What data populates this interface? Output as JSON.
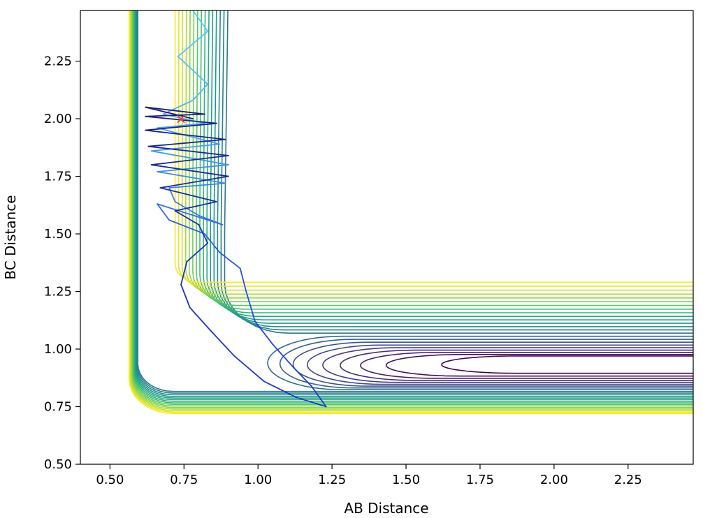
{
  "chart_data": {
    "type": "contour",
    "title": "",
    "xlabel": "AB Distance",
    "ylabel": "BC Distance",
    "xlim": [
      0.4,
      2.47
    ],
    "ylim": [
      0.5,
      2.47
    ],
    "xticks": [
      "0.50",
      "0.75",
      "1.00",
      "1.25",
      "1.50",
      "1.75",
      "2.00",
      "2.25"
    ],
    "yticks": [
      "0.50",
      "0.75",
      "1.00",
      "1.25",
      "1.50",
      "1.75",
      "2.00",
      "2.25"
    ],
    "colormap": "viridis",
    "contour_levels": 24,
    "start_marker": {
      "x": 0.74,
      "y": 2.0,
      "symbol": "×",
      "color": "#e8383b"
    },
    "trajectory": {
      "color_start": "#5bc8f5",
      "color_end": "#1a3fd9",
      "color_tail": "#1a1f6e",
      "points": [
        [
          0.78,
          2.47
        ],
        [
          0.83,
          2.38
        ],
        [
          0.73,
          2.27
        ],
        [
          0.83,
          2.15
        ],
        [
          0.78,
          2.08
        ],
        [
          0.68,
          2.02
        ],
        [
          0.82,
          1.98
        ],
        [
          0.66,
          1.96
        ],
        [
          0.87,
          1.89
        ],
        [
          0.64,
          1.86
        ],
        [
          0.9,
          1.8
        ],
        [
          0.66,
          1.77
        ],
        [
          0.89,
          1.72
        ],
        [
          0.7,
          1.7
        ],
        [
          0.72,
          1.64
        ],
        [
          0.8,
          1.58
        ],
        [
          0.88,
          1.54
        ],
        [
          0.66,
          1.63
        ],
        [
          0.7,
          1.56
        ],
        [
          0.82,
          1.5
        ],
        [
          0.87,
          1.42
        ],
        [
          0.94,
          1.35
        ],
        [
          0.96,
          1.25
        ],
        [
          0.99,
          1.12
        ],
        [
          1.05,
          1.02
        ],
        [
          1.12,
          0.92
        ],
        [
          1.18,
          0.84
        ],
        [
          1.23,
          0.75
        ],
        [
          1.13,
          0.79
        ],
        [
          1.02,
          0.86
        ],
        [
          0.92,
          0.97
        ],
        [
          0.84,
          1.08
        ],
        [
          0.77,
          1.18
        ],
        [
          0.74,
          1.28
        ],
        [
          0.76,
          1.38
        ],
        [
          0.83,
          1.46
        ],
        [
          0.8,
          1.54
        ],
        [
          0.72,
          1.6
        ],
        [
          0.86,
          1.64
        ],
        [
          0.67,
          1.7
        ],
        [
          0.9,
          1.75
        ],
        [
          0.64,
          1.8
        ],
        [
          0.9,
          1.84
        ],
        [
          0.63,
          1.88
        ],
        [
          0.89,
          1.91
        ],
        [
          0.62,
          1.95
        ],
        [
          0.86,
          1.98
        ],
        [
          0.62,
          2.01
        ],
        [
          0.82,
          2.02
        ],
        [
          0.62,
          2.05
        ],
        [
          0.78,
          2.0
        ]
      ]
    }
  }
}
